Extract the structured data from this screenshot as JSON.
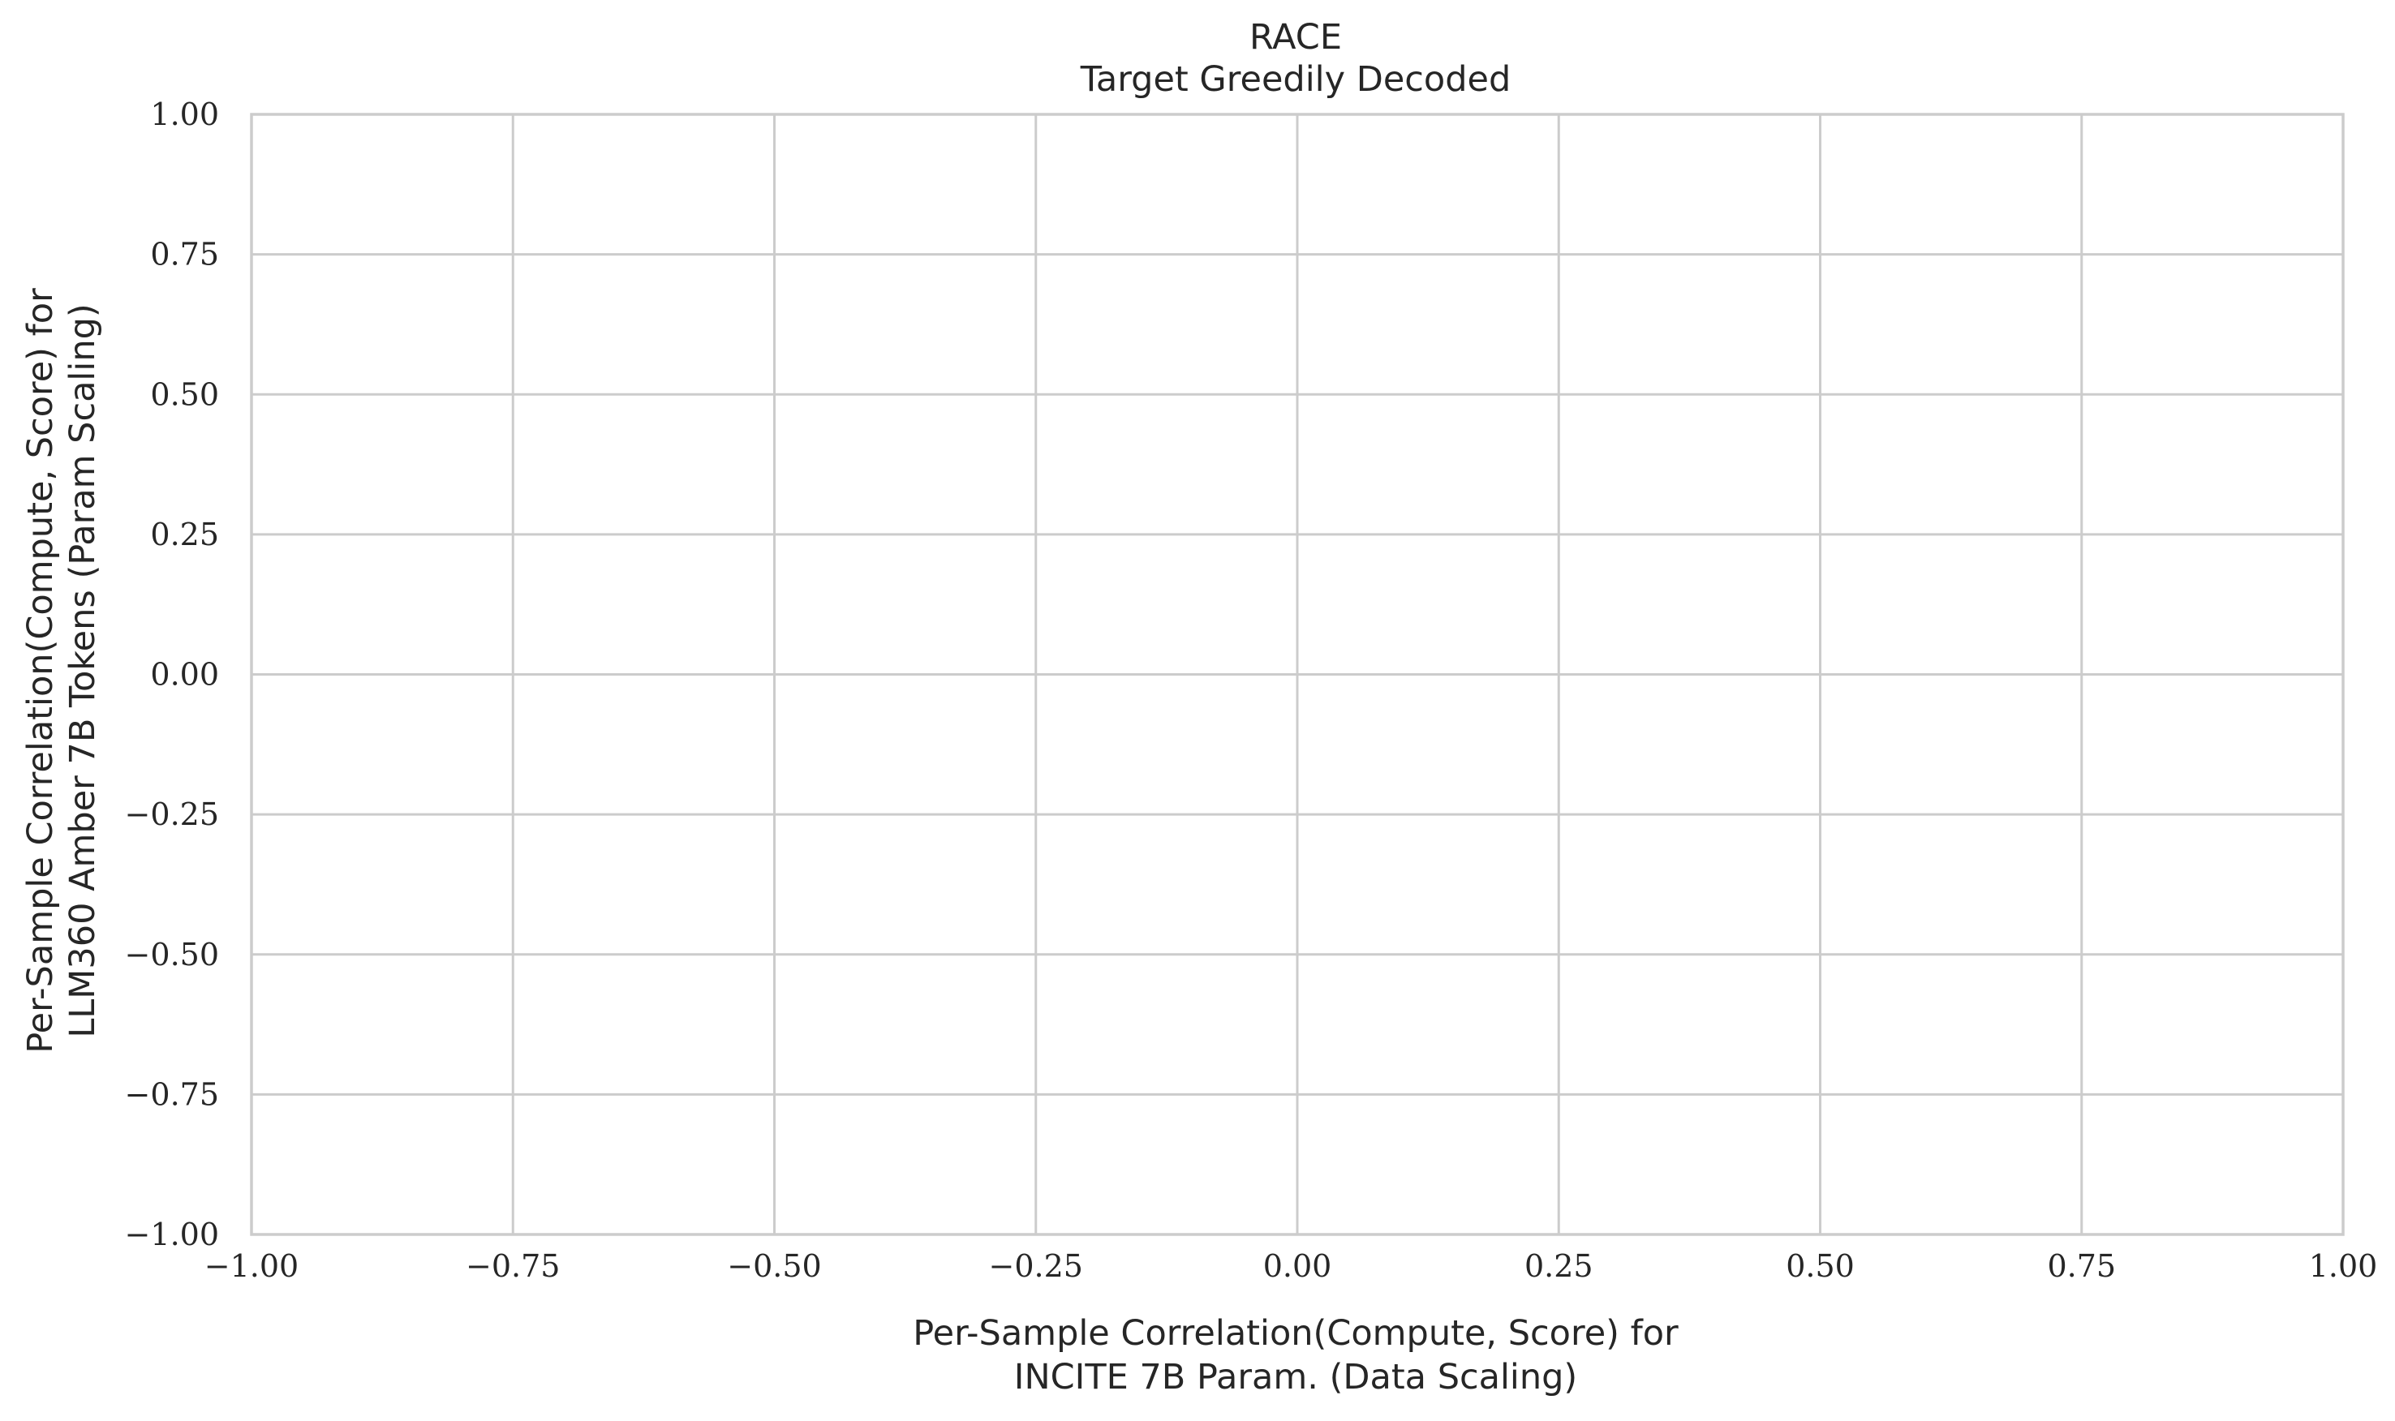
{
  "chart_data": {
    "type": "scatter",
    "title": "RACE",
    "subtitle": "Target Greedily Decoded",
    "xlabel": [
      "Per-Sample Correlation(Compute, Score) for",
      "INCITE 7B Param. (Data Scaling)"
    ],
    "ylabel": [
      "Per-Sample Correlation(Compute, Score) for",
      "LLM360 Amber 7B Tokens (Param Scaling)"
    ],
    "xlim": [
      -1.0,
      1.0
    ],
    "ylim": [
      -1.0,
      1.0
    ],
    "x_ticks": [
      -1.0,
      -0.75,
      -0.5,
      -0.25,
      0.0,
      0.25,
      0.5,
      0.75,
      1.0
    ],
    "y_ticks": [
      -1.0,
      -0.75,
      -0.5,
      -0.25,
      0.0,
      0.25,
      0.5,
      0.75,
      1.0
    ],
    "x_tick_labels": [
      "−1.00",
      "−0.75",
      "−0.50",
      "−0.25",
      "0.00",
      "0.25",
      "0.50",
      "0.75",
      "1.00"
    ],
    "y_tick_labels": [
      "−1.00",
      "−0.75",
      "−0.50",
      "−0.25",
      "0.00",
      "0.25",
      "0.50",
      "0.75",
      "1.00"
    ],
    "grid": true,
    "points": [],
    "colors": {
      "grid": "#cccccc",
      "text": "#262626",
      "background": "#ffffff"
    }
  }
}
